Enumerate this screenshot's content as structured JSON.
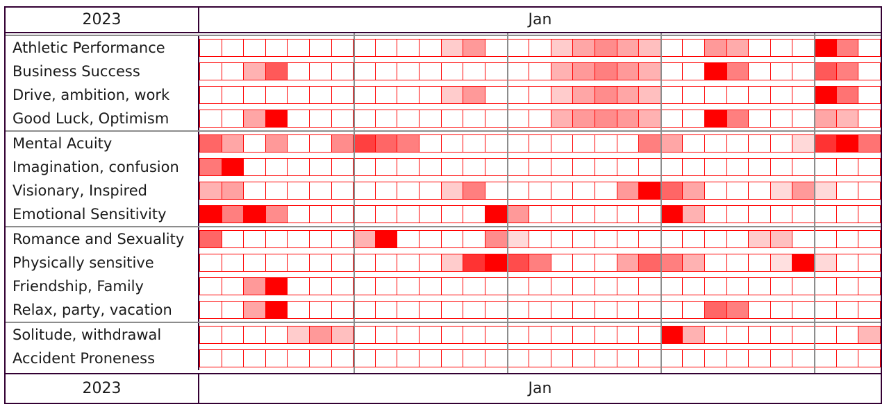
{
  "header": {
    "year": "2023",
    "month": "Jan"
  },
  "footer": {
    "year": "2023",
    "month": "Jan"
  },
  "colors": {
    "outer_border": "#330033",
    "cell_border": "#ff0000",
    "divider_gray": "#8c8c8c",
    "label_text": "#1a1a1a",
    "heat_rgb": "255,0,0"
  },
  "chart_data": {
    "type": "heatmap",
    "x_axis": {
      "year": "2023",
      "month": "Jan",
      "columns": 31,
      "tick_labels_visible": false,
      "week_dividers_after_day": [
        7,
        14,
        21,
        28
      ]
    },
    "value_legend": "intensity 0 (white) to 1 (pure red), rendered as rgba(255,0,0,intensity)",
    "groups": [
      {
        "rows": [
          {
            "label": "Athletic Performance",
            "intensities": [
              0,
              0,
              0,
              0,
              0,
              0,
              0,
              0,
              0,
              0,
              0,
              0.2,
              0.4,
              0,
              0,
              0,
              0.2,
              0.35,
              0.45,
              0.35,
              0.25,
              0,
              0,
              0.4,
              0.33,
              0,
              0,
              0,
              1,
              0.5,
              0
            ]
          },
          {
            "label": "Business Success",
            "intensities": [
              0,
              0,
              0.3,
              0.65,
              0,
              0,
              0,
              0,
              0,
              0,
              0,
              0,
              0,
              0,
              0,
              0,
              0.3,
              0.4,
              0.5,
              0.4,
              0.3,
              0,
              0,
              1,
              0.5,
              0,
              0,
              0,
              0.65,
              0.5,
              0
            ]
          },
          {
            "label": "Drive, ambition, work",
            "intensities": [
              0,
              0,
              0,
              0,
              0,
              0,
              0,
              0,
              0,
              0,
              0,
              0.2,
              0.4,
              0,
              0,
              0,
              0.2,
              0.35,
              0.45,
              0.35,
              0.25,
              0,
              0,
              0,
              0,
              0,
              0,
              0,
              1,
              0.55,
              0
            ]
          },
          {
            "label": "Good Luck, Optimism",
            "intensities": [
              0,
              0,
              0.35,
              1,
              0,
              0,
              0,
              0,
              0,
              0,
              0,
              0,
              0,
              0,
              0,
              0,
              0.3,
              0.4,
              0.45,
              0.4,
              0.3,
              0,
              0,
              1,
              0.5,
              0,
              0,
              0,
              0.35,
              0.28,
              0
            ]
          }
        ]
      },
      {
        "rows": [
          {
            "label": "Mental Acuity",
            "intensities": [
              0.6,
              0.35,
              0,
              0.4,
              0,
              0,
              0.45,
              0.75,
              0.6,
              0.5,
              0,
              0,
              0,
              0,
              0,
              0,
              0,
              0,
              0,
              0,
              0.5,
              0.35,
              0,
              0,
              0,
              0,
              0,
              0.15,
              0.8,
              1,
              0.55
            ]
          },
          {
            "label": "Imagination, confusion",
            "intensities": [
              0.53,
              1,
              0,
              0,
              0,
              0,
              0,
              0,
              0,
              0,
              0,
              0,
              0,
              0,
              0,
              0,
              0,
              0,
              0,
              0,
              0,
              0,
              0,
              0,
              0,
              0,
              0,
              0,
              0,
              0,
              0
            ]
          },
          {
            "label": "Visionary, Inspired",
            "intensities": [
              0.3,
              0.37,
              0,
              0,
              0,
              0,
              0,
              0,
              0,
              0,
              0,
              0.2,
              0.5,
              0,
              0,
              0,
              0,
              0,
              0,
              0.4,
              1,
              0.6,
              0.35,
              0,
              0,
              0,
              0.15,
              0.4,
              0.15,
              0,
              0
            ]
          },
          {
            "label": "Emotional Sensitivity",
            "intensities": [
              1,
              0.5,
              1,
              0.45,
              0,
              0,
              0,
              0,
              0,
              0,
              0,
              0,
              0,
              1,
              0.4,
              0,
              0,
              0,
              0,
              0,
              0,
              1,
              0.3,
              0,
              0,
              0,
              0,
              0,
              0,
              0,
              0
            ]
          }
        ]
      },
      {
        "rows": [
          {
            "label": "Romance and Sexuality",
            "intensities": [
              0.6,
              0,
              0,
              0,
              0,
              0,
              0,
              0.3,
              1,
              0,
              0,
              0,
              0,
              0.45,
              0.15,
              0,
              0,
              0,
              0,
              0,
              0,
              0,
              0,
              0,
              0,
              0.2,
              0.25,
              0,
              0,
              0,
              0
            ]
          },
          {
            "label": "Physically sensitive",
            "intensities": [
              0,
              0,
              0,
              0,
              0,
              0,
              0,
              0,
              0,
              0,
              0,
              0.2,
              0.8,
              1,
              0.7,
              0.5,
              0,
              0,
              0,
              0.35,
              0.6,
              0.5,
              0.3,
              0,
              0,
              0,
              0.12,
              1,
              0.15,
              0,
              0
            ]
          },
          {
            "label": "Friendship, Family",
            "intensities": [
              0,
              0,
              0.4,
              1,
              0,
              0,
              0,
              0,
              0,
              0,
              0,
              0,
              0,
              0,
              0,
              0,
              0,
              0,
              0,
              0,
              0,
              0,
              0,
              0,
              0,
              0,
              0,
              0,
              0,
              0,
              0
            ]
          },
          {
            "label": "Relax, party, vacation",
            "intensities": [
              0,
              0,
              0.35,
              1,
              0,
              0,
              0,
              0,
              0,
              0,
              0,
              0,
              0,
              0,
              0,
              0,
              0,
              0,
              0,
              0,
              0,
              0,
              0,
              0.6,
              0.5,
              0,
              0,
              0,
              0,
              0,
              0
            ]
          }
        ]
      },
      {
        "rows": [
          {
            "label": "Solitude, withdrawal",
            "intensities": [
              0,
              0,
              0,
              0,
              0.2,
              0.4,
              0.25,
              0,
              0,
              0,
              0,
              0,
              0,
              0,
              0,
              0,
              0,
              0,
              0,
              0,
              0,
              1,
              0.3,
              0,
              0,
              0,
              0,
              0,
              0,
              0,
              0.28
            ]
          },
          {
            "label": "Accident Proneness",
            "intensities": [
              0,
              0,
              0,
              0,
              0,
              0,
              0,
              0,
              0,
              0,
              0,
              0,
              0,
              0,
              0,
              0,
              0,
              0,
              0,
              0,
              0,
              0,
              0,
              0,
              0,
              0,
              0,
              0,
              0,
              0,
              0
            ]
          }
        ]
      }
    ]
  }
}
